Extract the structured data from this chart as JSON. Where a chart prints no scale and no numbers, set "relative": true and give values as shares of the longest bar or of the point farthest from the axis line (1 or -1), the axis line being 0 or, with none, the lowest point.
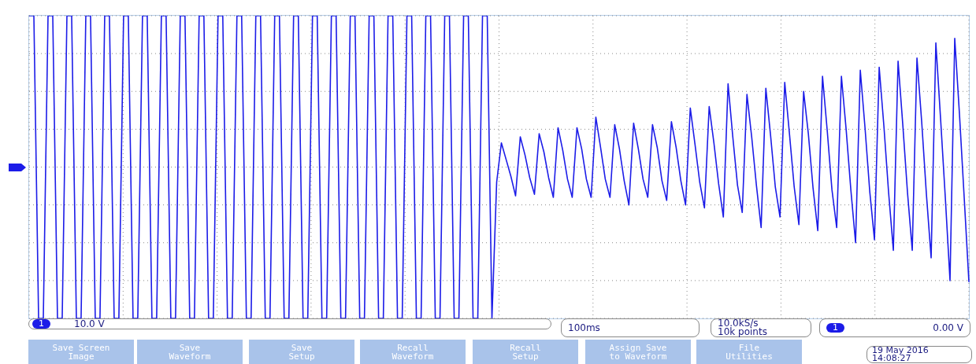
{
  "chart_data": {
    "type": "line",
    "relative": true,
    "grid": true,
    "line_style": "solid",
    "categories": [
      null,
      null,
      null,
      null,
      null,
      null,
      null,
      null,
      null,
      null,
      null,
      null,
      null,
      null,
      null,
      null,
      null,
      null,
      null,
      null,
      null,
      null,
      null,
      null,
      null,
      null,
      null,
      null,
      null,
      null,
      null,
      null,
      null,
      null,
      null,
      null,
      null,
      null,
      null,
      null,
      null,
      null,
      null,
      null,
      null,
      null,
      null,
      null,
      null,
      null,
      null,
      null,
      null,
      null,
      null,
      null,
      null,
      null,
      null,
      null,
      null,
      null,
      null,
      null,
      null,
      null,
      null,
      null,
      null,
      null,
      null,
      null,
      null,
      null,
      null,
      null,
      null,
      null,
      null,
      null,
      null,
      null,
      null,
      null,
      null,
      null,
      null,
      null,
      null,
      null,
      null,
      null,
      null,
      null,
      null,
      null,
      null,
      null,
      null,
      null,
      null,
      null,
      null,
      null,
      null,
      null,
      null,
      null,
      null,
      null,
      null,
      null,
      null,
      null,
      null,
      null,
      null,
      null,
      null,
      null,
      null,
      null,
      null,
      null,
      null,
      null,
      null,
      null,
      null,
      null,
      null,
      null,
      null,
      null,
      null,
      null,
      null,
      null,
      null,
      null,
      null,
      null,
      null,
      null,
      null,
      null,
      null,
      null,
      null,
      null,
      null,
      null,
      null,
      null,
      null,
      null,
      null,
      null,
      null,
      null,
      null,
      null,
      null,
      null,
      null,
      null,
      null,
      null,
      null,
      null,
      null,
      null,
      null,
      null,
      null,
      null,
      null,
      null,
      null,
      null,
      null,
      null,
      null,
      null,
      null,
      null,
      null,
      null,
      null,
      null,
      null,
      null,
      null,
      null,
      null,
      null,
      null,
      null,
      null,
      null
    ],
    "series": [
      {
        "color": "#1c1ce8",
        "values": [
          1,
          1,
          -1,
          -1,
          1,
          1,
          -1,
          -1,
          1,
          1,
          -1,
          -1,
          1,
          1,
          -1,
          -1,
          1,
          1,
          -1,
          -1,
          1,
          1,
          -1,
          -1,
          1,
          1,
          -1,
          -1,
          1,
          1,
          -1,
          -1,
          1,
          1,
          -1,
          -1,
          1,
          1,
          -1,
          -1,
          1,
          1,
          -1,
          -1,
          1,
          1,
          -1,
          -1,
          1,
          1,
          -1,
          -1,
          1,
          1,
          -1,
          -1,
          1,
          1,
          -1,
          -1,
          1,
          1,
          -1,
          -1,
          1,
          1,
          -1,
          -1,
          1,
          1,
          -1,
          -1,
          1,
          1,
          -1,
          -1,
          1,
          1,
          -1,
          -1,
          1,
          1,
          -1,
          -1,
          1,
          1,
          -1,
          -1,
          1,
          1,
          -1,
          -1,
          1,
          1,
          -1,
          -1,
          1,
          1,
          -1,
          -0.1,
          0.16,
          0.05,
          -0.06,
          -0.19,
          0.2,
          0.08,
          -0.07,
          -0.18,
          0.22,
          0.1,
          -0.07,
          -0.2,
          0.26,
          0.11,
          -0.08,
          -0.2,
          0.26,
          0.12,
          -0.08,
          -0.2,
          0.33,
          0.13,
          -0.08,
          -0.2,
          0.28,
          0.12,
          -0.09,
          -0.25,
          0.29,
          0.12,
          -0.08,
          -0.2,
          0.28,
          0.13,
          -0.09,
          -0.22,
          0.3,
          0.13,
          -0.09,
          -0.25,
          0.39,
          0.15,
          -0.1,
          -0.27,
          0.4,
          0.16,
          -0.11,
          -0.33,
          0.55,
          0.2,
          -0.12,
          -0.3,
          0.48,
          0.2,
          -0.12,
          -0.4,
          0.52,
          0.21,
          -0.13,
          -0.33,
          0.56,
          0.22,
          -0.13,
          -0.38,
          0.5,
          0.22,
          -0.14,
          -0.42,
          0.6,
          0.24,
          -0.15,
          -0.4,
          0.6,
          0.25,
          -0.15,
          -0.5,
          0.64,
          0.26,
          -0.16,
          -0.48,
          0.66,
          0.27,
          -0.17,
          -0.55,
          0.7,
          0.28,
          -0.17,
          -0.55,
          0.72,
          0.3,
          -0.18,
          -0.6,
          0.82,
          0.32,
          -0.2,
          -0.75,
          0.85,
          0.35,
          -0.2,
          -0.76
        ]
      }
    ],
    "annotations": [
      "1",
      "10.0 V",
      "100ms",
      "10.0kS/s",
      "10k points",
      "1",
      "0.00 V",
      "Save Screen Image",
      "Save Waveform",
      "Save Setup",
      "Recall Waveform",
      "Recall Setup",
      "Assign Save to Waveform",
      "File Utilities",
      "19 May 2016",
      "14:08:27"
    ]
  }
}
